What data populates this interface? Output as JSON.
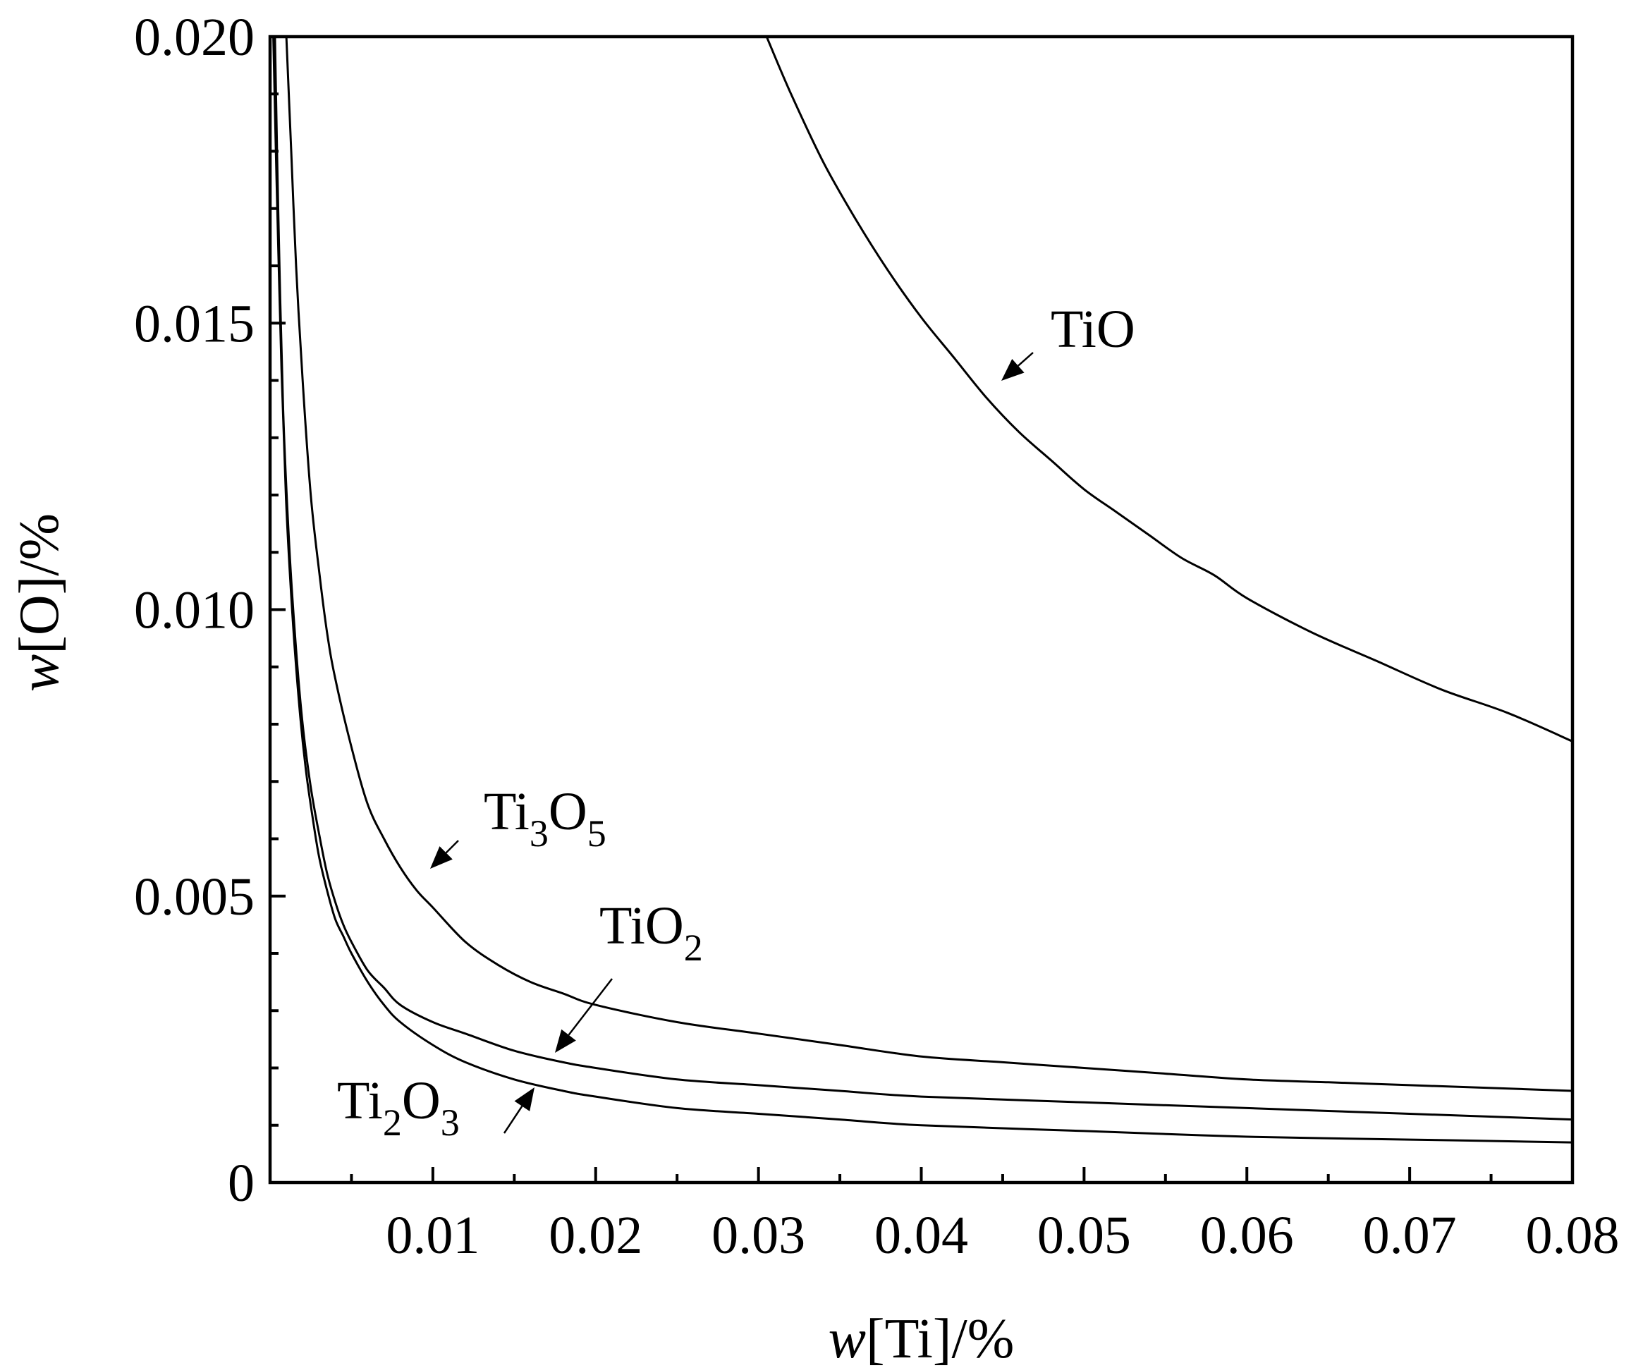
{
  "chart_data": {
    "type": "line",
    "title": "",
    "xlabel": {
      "italic": "w",
      "rest": "[Ti]/%"
    },
    "ylabel": {
      "italic": "w",
      "rest": "[O]/%"
    },
    "xlim": [
      0,
      0.08
    ],
    "ylim": [
      0,
      0.02
    ],
    "grid": false,
    "legend": "none",
    "x_ticks": [
      "0.01",
      "0.02",
      "0.03",
      "0.04",
      "0.05",
      "0.06",
      "0.07",
      "0.08"
    ],
    "x_tick_values": [
      0.01,
      0.02,
      0.03,
      0.04,
      0.05,
      0.06,
      0.07,
      0.08
    ],
    "y_ticks": [
      "0",
      "0.005",
      "0.010",
      "0.015",
      "0.020"
    ],
    "y_tick_values": [
      0,
      0.005,
      0.01,
      0.015,
      0.02
    ],
    "series": [
      {
        "name": "TiO",
        "label_parts": [
          {
            "t": "TiO",
            "sub": false
          }
        ],
        "x": [
          0.0305,
          0.032,
          0.034,
          0.036,
          0.038,
          0.04,
          0.042,
          0.044,
          0.046,
          0.048,
          0.05,
          0.052,
          0.054,
          0.056,
          0.058,
          0.06,
          0.064,
          0.068,
          0.072,
          0.076,
          0.08
        ],
        "y": [
          0.02,
          0.019,
          0.0178,
          0.0168,
          0.0159,
          0.0151,
          0.0144,
          0.0137,
          0.0131,
          0.0126,
          0.0121,
          0.0117,
          0.0113,
          0.0109,
          0.0106,
          0.0102,
          0.0096,
          0.0091,
          0.0086,
          0.0082,
          0.0077
        ]
      },
      {
        "name": "Ti3O5",
        "label_parts": [
          {
            "t": "Ti",
            "sub": false
          },
          {
            "t": "3",
            "sub": true
          },
          {
            "t": "O",
            "sub": false
          },
          {
            "t": "5",
            "sub": true
          }
        ],
        "x": [
          0.001,
          0.0013,
          0.0016,
          0.002,
          0.0025,
          0.003,
          0.0035,
          0.004,
          0.005,
          0.006,
          0.007,
          0.008,
          0.009,
          0.01,
          0.012,
          0.014,
          0.016,
          0.018,
          0.02,
          0.025,
          0.03,
          0.035,
          0.04,
          0.045,
          0.05,
          0.055,
          0.06,
          0.065,
          0.07,
          0.075,
          0.08
        ],
        "y": [
          0.02,
          0.018,
          0.016,
          0.014,
          0.012,
          0.0107,
          0.0096,
          0.0088,
          0.0076,
          0.0066,
          0.006,
          0.0055,
          0.0051,
          0.0048,
          0.0042,
          0.0038,
          0.0035,
          0.0033,
          0.0031,
          0.0028,
          0.0026,
          0.0024,
          0.0022,
          0.0021,
          0.002,
          0.0019,
          0.0018,
          0.00175,
          0.0017,
          0.00165,
          0.0016
        ]
      },
      {
        "name": "TiO2",
        "label_parts": [
          {
            "t": "TiO",
            "sub": false
          },
          {
            "t": "2",
            "sub": true
          }
        ],
        "x": [
          0.0003,
          0.0005,
          0.0008,
          0.0012,
          0.0016,
          0.002,
          0.0025,
          0.003,
          0.0035,
          0.004,
          0.0045,
          0.005,
          0.006,
          0.007,
          0.008,
          0.01,
          0.012,
          0.015,
          0.018,
          0.02,
          0.025,
          0.03,
          0.035,
          0.04,
          0.05,
          0.06,
          0.07,
          0.08
        ],
        "y": [
          0.02,
          0.017,
          0.0135,
          0.011,
          0.0093,
          0.008,
          0.0069,
          0.0061,
          0.0054,
          0.0049,
          0.0045,
          0.0042,
          0.0037,
          0.0034,
          0.0031,
          0.0028,
          0.0026,
          0.0023,
          0.0021,
          0.002,
          0.0018,
          0.0017,
          0.0016,
          0.0015,
          0.0014,
          0.0013,
          0.0012,
          0.0011
        ]
      },
      {
        "name": "Ti2O3",
        "label_parts": [
          {
            "t": "Ti",
            "sub": false
          },
          {
            "t": "2",
            "sub": true
          },
          {
            "t": "O",
            "sub": false
          },
          {
            "t": "3",
            "sub": true
          }
        ],
        "x": [
          0.0002,
          0.0004,
          0.0007,
          0.001,
          0.0014,
          0.0018,
          0.0022,
          0.0026,
          0.003,
          0.0035,
          0.004,
          0.0045,
          0.005,
          0.006,
          0.007,
          0.008,
          0.01,
          0.012,
          0.015,
          0.018,
          0.02,
          0.025,
          0.03,
          0.035,
          0.04,
          0.05,
          0.06,
          0.07,
          0.08
        ],
        "y": [
          0.02,
          0.0175,
          0.0142,
          0.0118,
          0.0098,
          0.0083,
          0.0072,
          0.0064,
          0.0057,
          0.0051,
          0.0046,
          0.0043,
          0.004,
          0.0035,
          0.0031,
          0.0028,
          0.0024,
          0.0021,
          0.0018,
          0.0016,
          0.0015,
          0.0013,
          0.0012,
          0.0011,
          0.001,
          0.0009,
          0.0008,
          0.00075,
          0.0007
        ]
      }
    ]
  }
}
